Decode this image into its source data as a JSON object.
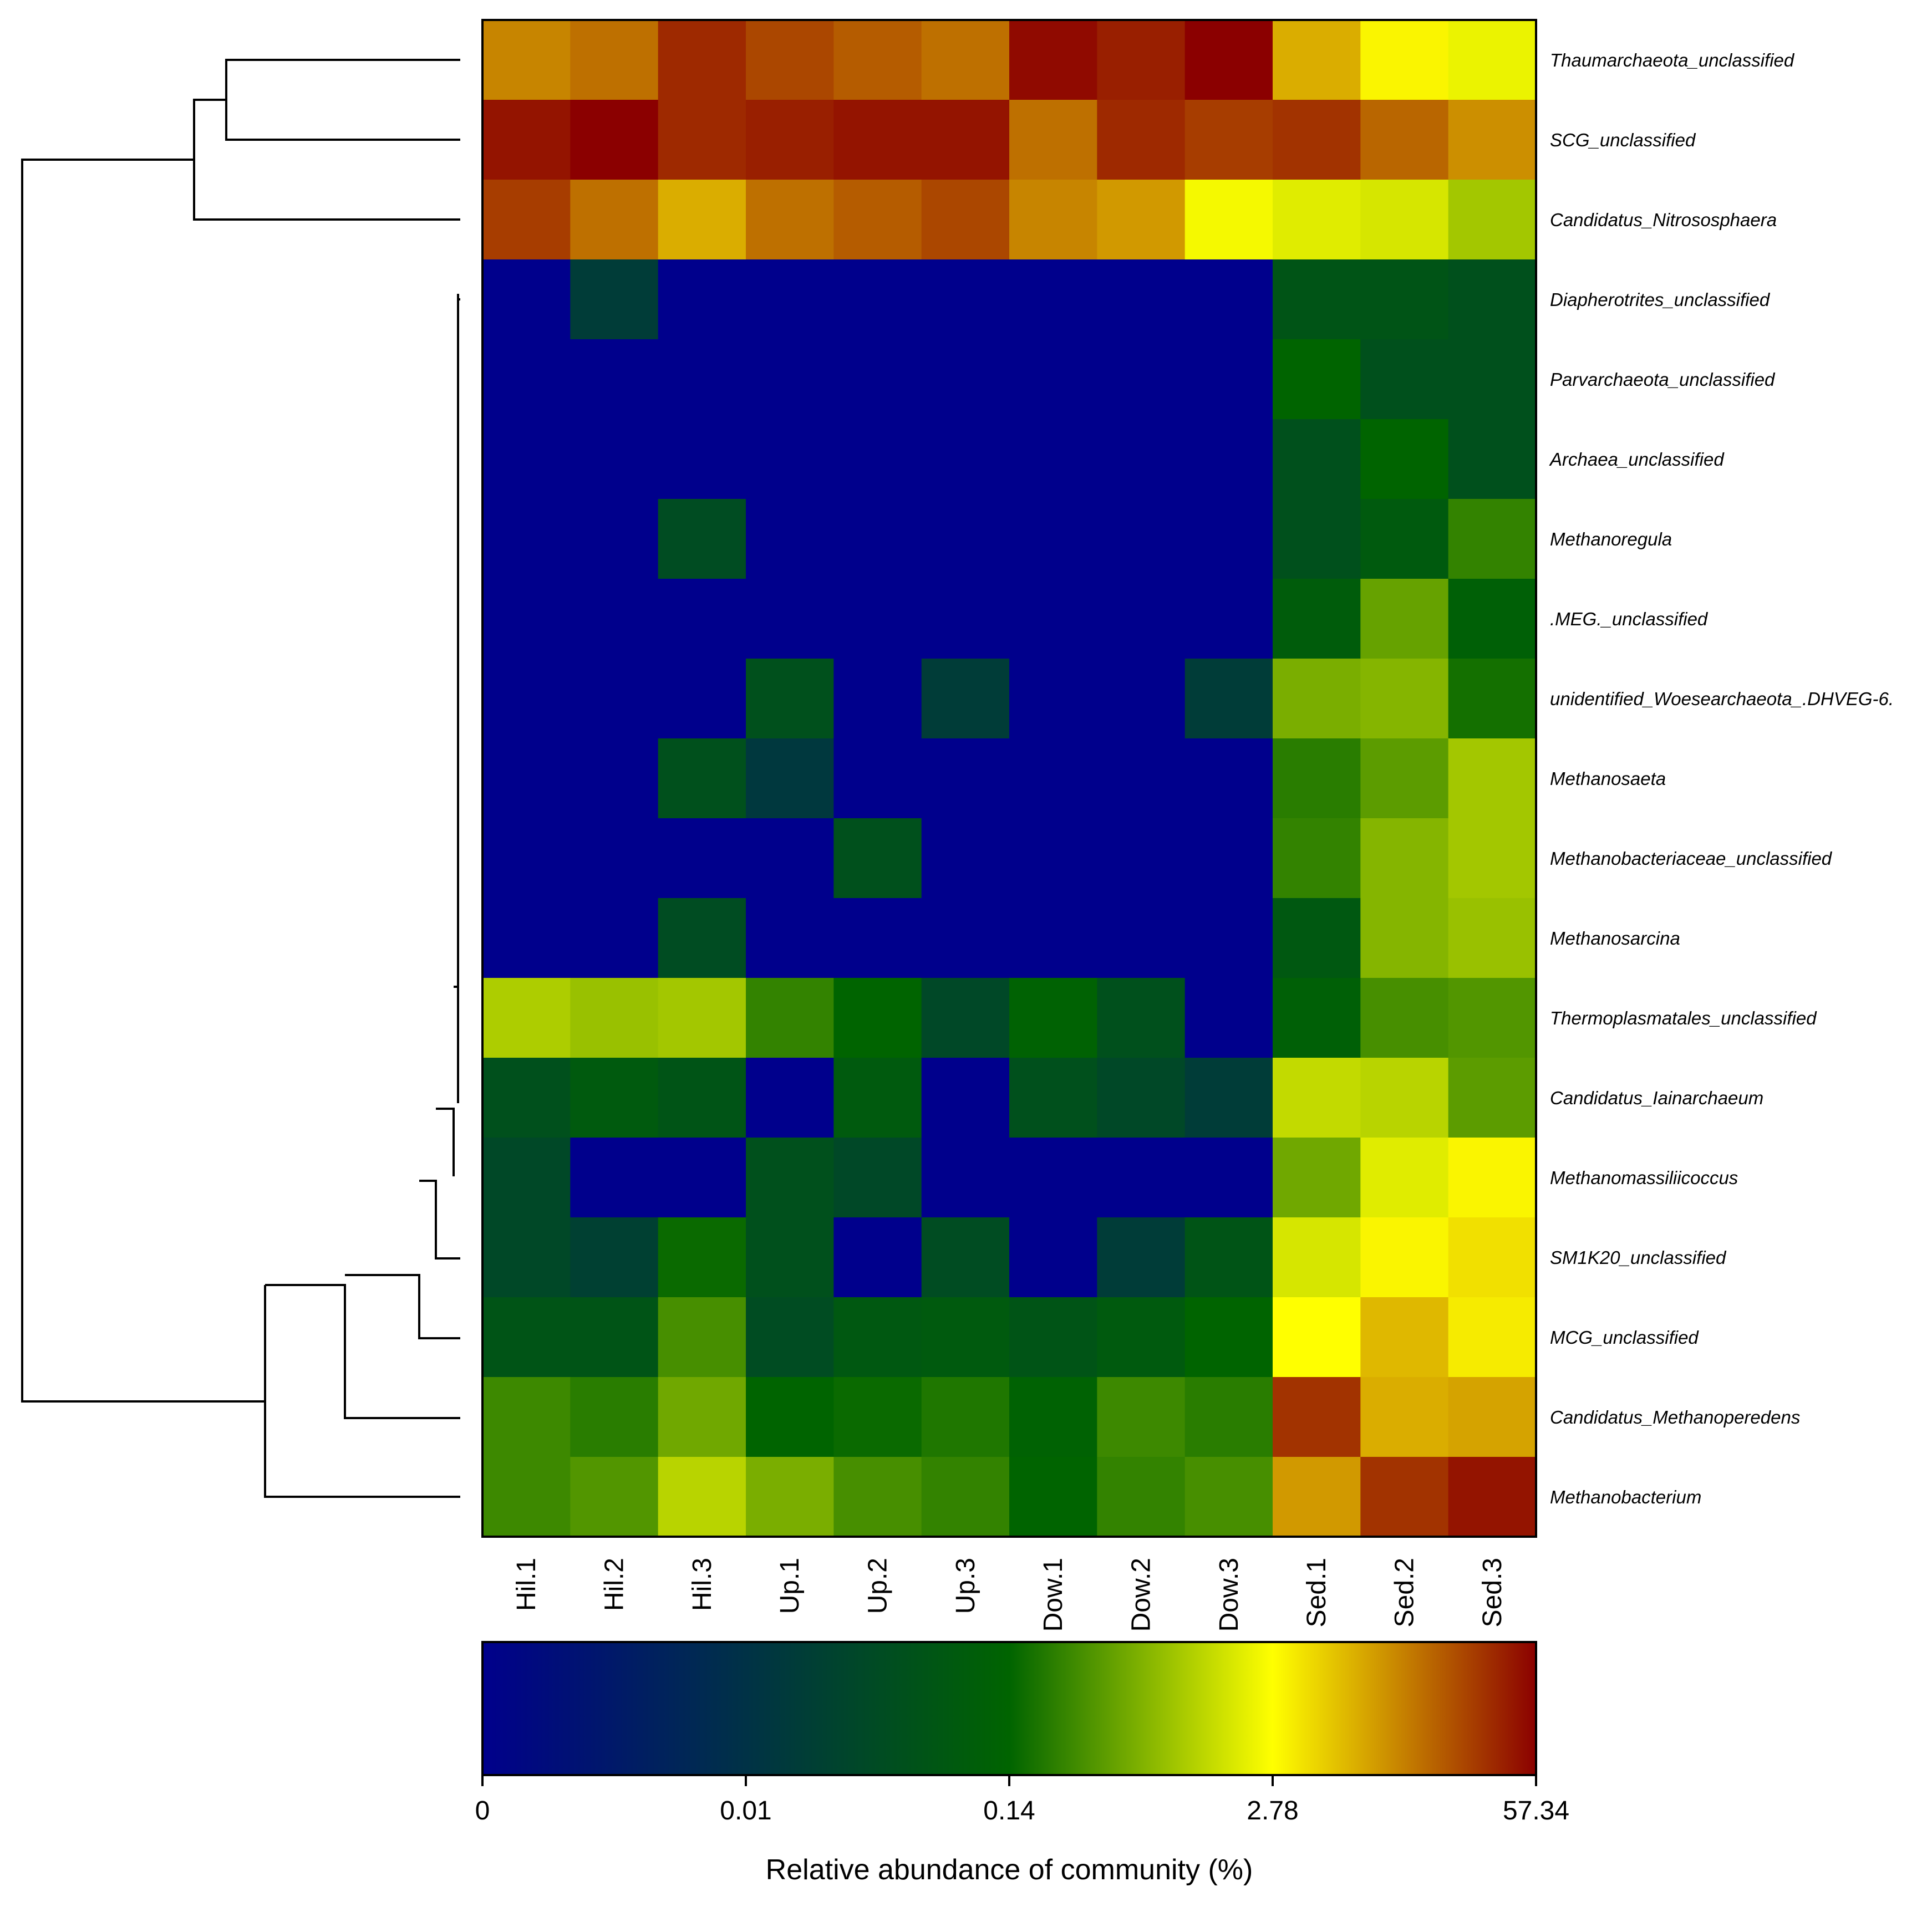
{
  "chart_data": {
    "type": "heatmap",
    "title": "",
    "columns": [
      "Hil.1",
      "Hil.2",
      "Hil.3",
      "Up.1",
      "Up.2",
      "Up.3",
      "Dow.1",
      "Dow.2",
      "Dow.3",
      "Sed.1",
      "Sed.2",
      "Sed.3"
    ],
    "rows": [
      "Thaumarchaeota_unclassified",
      "SCG_unclassified",
      "Candidatus_Nitrososphaera",
      "Diapherotrites_unclassified",
      "Parvarchaeota_unclassified",
      "Archaea_unclassified",
      "Methanoregula",
      ".MEG._unclassified",
      "unidentified_Woesearchaeota_.DHVEG-6.",
      "Methanosaeta",
      "Methanobacteriaceae_unclassified",
      "Methanosarcina",
      "Thermoplasmatales_unclassified",
      "Candidatus_Iainarchaeum",
      "Methanomassiliicoccus",
      "SM1K20_unclassified",
      "MCG_unclassified",
      "Candidatus_Methanoperedens",
      "Methanobacterium"
    ],
    "value_scale": "color position (0 = min, 1 = max) on the 0 to 57.34 % colorbar",
    "values": [
      [
        0.87,
        0.89,
        0.96,
        0.93,
        0.91,
        0.89,
        0.99,
        0.97,
        1.0,
        0.83,
        0.76,
        0.73
      ],
      [
        0.98,
        1.0,
        0.96,
        0.97,
        0.98,
        0.98,
        0.89,
        0.96,
        0.94,
        0.95,
        0.9,
        0.86
      ],
      [
        0.94,
        0.89,
        0.83,
        0.89,
        0.91,
        0.93,
        0.87,
        0.85,
        0.74,
        0.72,
        0.71,
        0.66
      ],
      [
        0.0,
        0.3,
        0.0,
        0.0,
        0.0,
        0.0,
        0.0,
        0.0,
        0.0,
        0.42,
        0.42,
        0.4
      ],
      [
        0.0,
        0.0,
        0.0,
        0.0,
        0.0,
        0.0,
        0.0,
        0.0,
        0.0,
        0.5,
        0.4,
        0.4
      ],
      [
        0.0,
        0.0,
        0.0,
        0.0,
        0.0,
        0.0,
        0.0,
        0.0,
        0.0,
        0.4,
        0.5,
        0.4
      ],
      [
        0.0,
        0.0,
        0.38,
        0.0,
        0.0,
        0.0,
        0.0,
        0.0,
        0.0,
        0.4,
        0.45,
        0.55
      ],
      [
        0.0,
        0.0,
        0.0,
        0.0,
        0.0,
        0.0,
        0.0,
        0.0,
        0.0,
        0.46,
        0.6,
        0.48
      ],
      [
        0.0,
        0.0,
        0.0,
        0.4,
        0.0,
        0.3,
        0.0,
        0.0,
        0.3,
        0.62,
        0.63,
        0.52
      ],
      [
        0.0,
        0.0,
        0.4,
        0.28,
        0.0,
        0.0,
        0.0,
        0.0,
        0.0,
        0.54,
        0.59,
        0.66
      ],
      [
        0.0,
        0.0,
        0.0,
        0.0,
        0.4,
        0.0,
        0.0,
        0.0,
        0.0,
        0.55,
        0.63,
        0.66
      ],
      [
        0.0,
        0.0,
        0.38,
        0.0,
        0.0,
        0.0,
        0.0,
        0.0,
        0.0,
        0.44,
        0.63,
        0.65
      ],
      [
        0.67,
        0.65,
        0.66,
        0.55,
        0.5,
        0.36,
        0.49,
        0.4,
        0.0,
        0.48,
        0.57,
        0.58
      ],
      [
        0.4,
        0.45,
        0.42,
        0.0,
        0.45,
        0.0,
        0.4,
        0.36,
        0.3,
        0.69,
        0.68,
        0.59
      ],
      [
        0.36,
        0.0,
        0.0,
        0.4,
        0.36,
        0.0,
        0.0,
        0.0,
        0.0,
        0.61,
        0.72,
        0.76
      ],
      [
        0.36,
        0.32,
        0.51,
        0.4,
        0.0,
        0.38,
        0.0,
        0.3,
        0.42,
        0.71,
        0.76,
        0.78
      ],
      [
        0.42,
        0.42,
        0.57,
        0.38,
        0.44,
        0.45,
        0.42,
        0.45,
        0.5,
        0.75,
        0.82,
        0.77
      ],
      [
        0.56,
        0.54,
        0.61,
        0.5,
        0.51,
        0.53,
        0.49,
        0.56,
        0.54,
        0.95,
        0.83,
        0.84
      ],
      [
        0.56,
        0.58,
        0.68,
        0.62,
        0.57,
        0.55,
        0.5,
        0.55,
        0.57,
        0.85,
        0.95,
        0.98
      ]
    ],
    "colorbar": {
      "title": "Relative abundance of community (%)",
      "tick_labels": [
        "0",
        "0.01",
        "0.14",
        "2.78",
        "57.34"
      ],
      "range": [
        0,
        57.34
      ],
      "colors": [
        "#00008c",
        "#006400",
        "#ffff00",
        "#8b0000"
      ]
    },
    "dendrogram": "row clustering shown on left"
  }
}
